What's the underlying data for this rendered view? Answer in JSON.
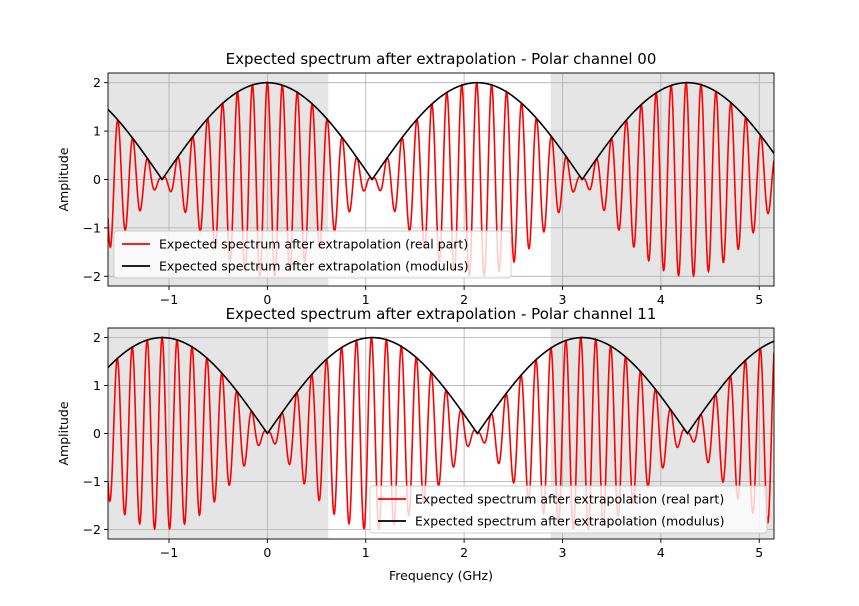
{
  "chart_data": [
    {
      "type": "line",
      "title": "Expected spectrum after extrapolation - Polar channel 00",
      "xlabel": "",
      "ylabel": "Amplitude",
      "xlim": [
        -1.62,
        5.15
      ],
      "ylim": [
        -2.2,
        2.2
      ],
      "xticks": [
        -1,
        0,
        1,
        2,
        3,
        4,
        5
      ],
      "xtick_labels": [
        "−1",
        "0",
        "1",
        "2",
        "3",
        "4",
        "5"
      ],
      "yticks": [
        -2,
        -1,
        0,
        1,
        2
      ],
      "ytick_labels": [
        "−2",
        "−1",
        "0",
        "1",
        "2"
      ],
      "grid": true,
      "shaded_x_ranges": [
        [
          -1.62,
          0.62
        ],
        [
          2.88,
          5.15
        ]
      ],
      "legend_position": "lower-left",
      "modulus_zeros_x": [
        -1.07,
        1.07,
        3.2
      ],
      "modulus_peaks_x": [
        0.0,
        2.14,
        4.28
      ],
      "modulus_peak": 2.0,
      "carrier_period": 0.152,
      "series": [
        {
          "name": "Expected spectrum after extrapolation (real part)",
          "color": "#ff0000",
          "kind": "real"
        },
        {
          "name": "Expected spectrum after extrapolation (modulus)",
          "color": "#000000",
          "kind": "modulus"
        }
      ]
    },
    {
      "type": "line",
      "title": "Expected spectrum after extrapolation - Polar channel 11",
      "xlabel": "Frequency (GHz)",
      "ylabel": "Amplitude",
      "xlim": [
        -1.62,
        5.15
      ],
      "ylim": [
        -2.2,
        2.2
      ],
      "xticks": [
        -1,
        0,
        1,
        2,
        3,
        4,
        5
      ],
      "xtick_labels": [
        "−1",
        "0",
        "1",
        "2",
        "3",
        "4",
        "5"
      ],
      "yticks": [
        -2,
        -1,
        0,
        1,
        2
      ],
      "ytick_labels": [
        "−2",
        "−1",
        "0",
        "1",
        "2"
      ],
      "grid": true,
      "shaded_x_ranges": [
        [
          -1.62,
          0.62
        ],
        [
          2.88,
          5.15
        ]
      ],
      "legend_position": "lower-right",
      "modulus_zeros_x": [
        0.0,
        2.14,
        4.28
      ],
      "modulus_peaks_x": [
        -1.07,
        1.07,
        3.2
      ],
      "modulus_peak": 2.0,
      "carrier_period": 0.152,
      "series": [
        {
          "name": "Expected spectrum after extrapolation (real part)",
          "color": "#ff0000",
          "kind": "real"
        },
        {
          "name": "Expected spectrum after extrapolation (modulus)",
          "color": "#000000",
          "kind": "modulus"
        }
      ]
    }
  ]
}
